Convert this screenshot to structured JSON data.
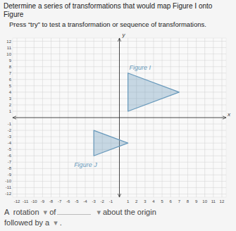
{
  "chart_data": {
    "type": "polygon",
    "title": "Determine a series of transformations that would map Figure Ⅰ onto Figure",
    "subtitle": "Press “try” to test a transformation or sequence of transformations.",
    "xlabel": "x",
    "ylabel": "y",
    "series": [
      {
        "name": "Figure I",
        "color": "#6899bb",
        "x": [
          1,
          1,
          7
        ],
        "values": [
          1,
          7,
          4
        ]
      },
      {
        "name": "Figure J",
        "color": "#6899bb",
        "x": [
          -3,
          -3,
          1
        ],
        "values": [
          -2,
          -6,
          -4
        ]
      }
    ],
    "xlim": [
      -12.5,
      12.5
    ],
    "ylim": [
      -12.5,
      12.5
    ],
    "xticks": [
      -12,
      -11,
      -10,
      -9,
      -8,
      -7,
      -6,
      -5,
      -4,
      -3,
      -2,
      -1,
      1,
      2,
      3,
      4,
      5,
      6,
      7,
      8,
      9,
      10,
      11,
      12
    ],
    "yticks": [
      -12,
      -11,
      -10,
      -9,
      -8,
      -7,
      -6,
      -5,
      -4,
      -3,
      -2,
      -1,
      1,
      2,
      3,
      4,
      5,
      6,
      7,
      8,
      9,
      10,
      11,
      12
    ],
    "grid": true,
    "annotations": [
      "A  rotation",
      "▾",
      "of",
      "▾",
      "about the origin",
      "followed by a",
      "▾",
      "."
    ]
  }
}
